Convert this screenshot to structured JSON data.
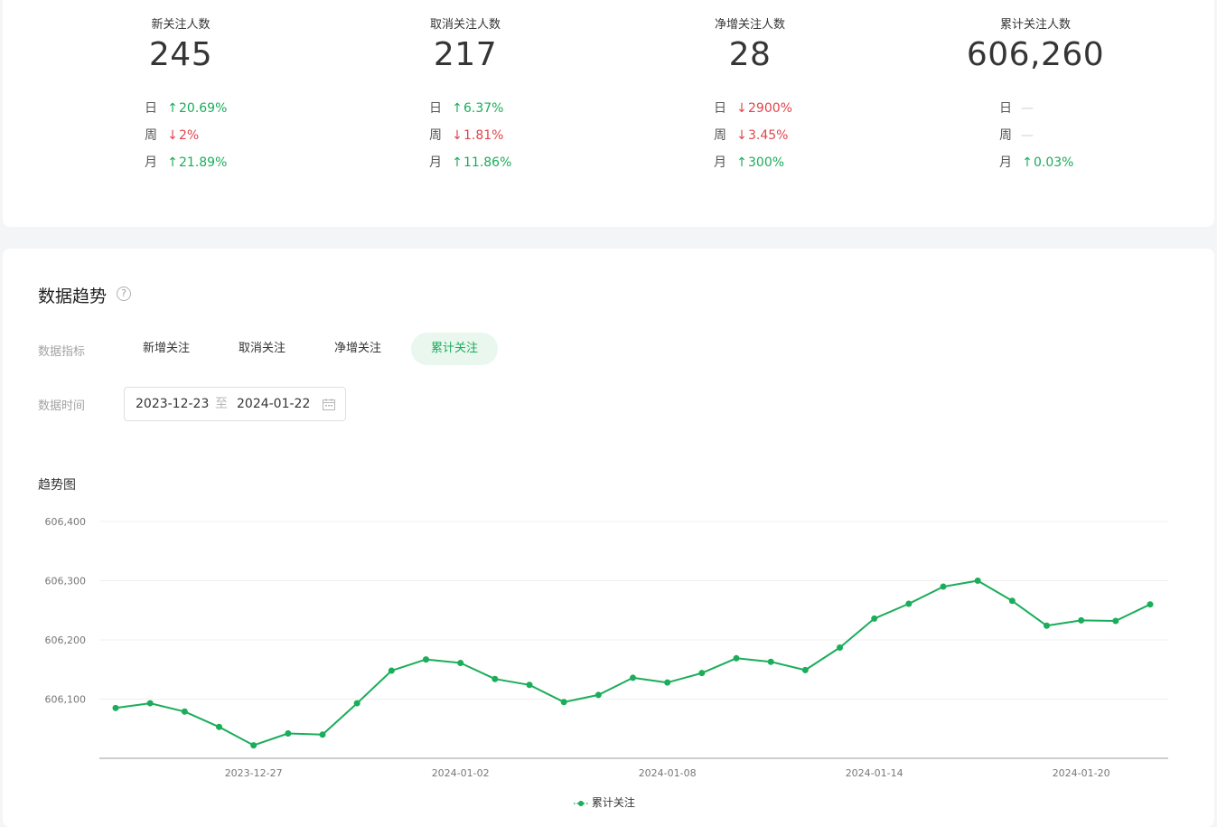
{
  "summary": [
    {
      "title": "新关注人数",
      "value": "245",
      "rows": [
        {
          "period": "日",
          "dir": "up",
          "arrow": "↑",
          "value": "20.69%"
        },
        {
          "period": "周",
          "dir": "down",
          "arrow": "↓",
          "value": "2%"
        },
        {
          "period": "月",
          "dir": "up",
          "arrow": "↑",
          "value": "21.89%"
        }
      ]
    },
    {
      "title": "取消关注人数",
      "value": "217",
      "rows": [
        {
          "period": "日",
          "dir": "up",
          "arrow": "↑",
          "value": "6.37%"
        },
        {
          "period": "周",
          "dir": "down",
          "arrow": "↓",
          "value": "1.81%"
        },
        {
          "period": "月",
          "dir": "up",
          "arrow": "↑",
          "value": "11.86%"
        }
      ]
    },
    {
      "title": "净增关注人数",
      "value": "28",
      "rows": [
        {
          "period": "日",
          "dir": "down",
          "arrow": "↓",
          "value": "2900%"
        },
        {
          "period": "周",
          "dir": "down",
          "arrow": "↓",
          "value": "3.45%"
        },
        {
          "period": "月",
          "dir": "up",
          "arrow": "↑",
          "value": "300%"
        }
      ]
    },
    {
      "title": "累计关注人数",
      "value": "606,260",
      "rows": [
        {
          "period": "日",
          "dir": "flat",
          "arrow": "",
          "value": "—"
        },
        {
          "period": "周",
          "dir": "flat",
          "arrow": "",
          "value": "—"
        },
        {
          "period": "月",
          "dir": "up",
          "arrow": "↑",
          "value": "0.03%"
        }
      ]
    }
  ],
  "trend": {
    "title": "数据趋势",
    "help_icon": "question-circle-icon",
    "metric_label": "数据指标",
    "tabs": [
      {
        "label": "新增关注",
        "active": false
      },
      {
        "label": "取消关注",
        "active": false
      },
      {
        "label": "净增关注",
        "active": false
      },
      {
        "label": "累计关注",
        "active": true
      }
    ],
    "time_label": "数据时间",
    "date_start": "2023-12-23",
    "date_separator": "至",
    "date_end": "2024-01-22",
    "calendar_icon": "calendar-icon",
    "chart_title": "趋势图"
  },
  "colors": {
    "accent": "#1aad5a",
    "up": "#1aad5a",
    "down": "#e0454b"
  },
  "chart_data": {
    "type": "line",
    "x": [
      "2023-12-23",
      "2023-12-24",
      "2023-12-25",
      "2023-12-26",
      "2023-12-27",
      "2023-12-28",
      "2023-12-29",
      "2023-12-30",
      "2023-12-31",
      "2024-01-01",
      "2024-01-02",
      "2024-01-03",
      "2024-01-04",
      "2024-01-05",
      "2024-01-06",
      "2024-01-07",
      "2024-01-08",
      "2024-01-09",
      "2024-01-10",
      "2024-01-11",
      "2024-01-12",
      "2024-01-13",
      "2024-01-14",
      "2024-01-15",
      "2024-01-16",
      "2024-01-17",
      "2024-01-18",
      "2024-01-19",
      "2024-01-20",
      "2024-01-21",
      "2024-01-22"
    ],
    "series": [
      {
        "name": "累计关注",
        "values": [
          606085,
          606093,
          606079,
          606053,
          606022,
          606042,
          606040,
          606093,
          606148,
          606167,
          606161,
          606134,
          606124,
          606095,
          606107,
          606136,
          606128,
          606144,
          606169,
          606163,
          606149,
          606187,
          606236,
          606261,
          606290,
          606300,
          606266,
          606224,
          606233,
          606232,
          606260
        ]
      }
    ],
    "x_tick_labels": [
      "2023-12-27",
      "2024-01-02",
      "2024-01-08",
      "2024-01-14",
      "2024-01-20"
    ],
    "y_tick_labels": [
      "606,100",
      "606,200",
      "606,300",
      "606,400"
    ],
    "y_ticks": [
      606100,
      606200,
      606300,
      606400
    ],
    "ylim": [
      606000,
      606400
    ],
    "grid": true,
    "legend": "bottom-center",
    "title": "",
    "xlabel": "",
    "ylabel": ""
  }
}
